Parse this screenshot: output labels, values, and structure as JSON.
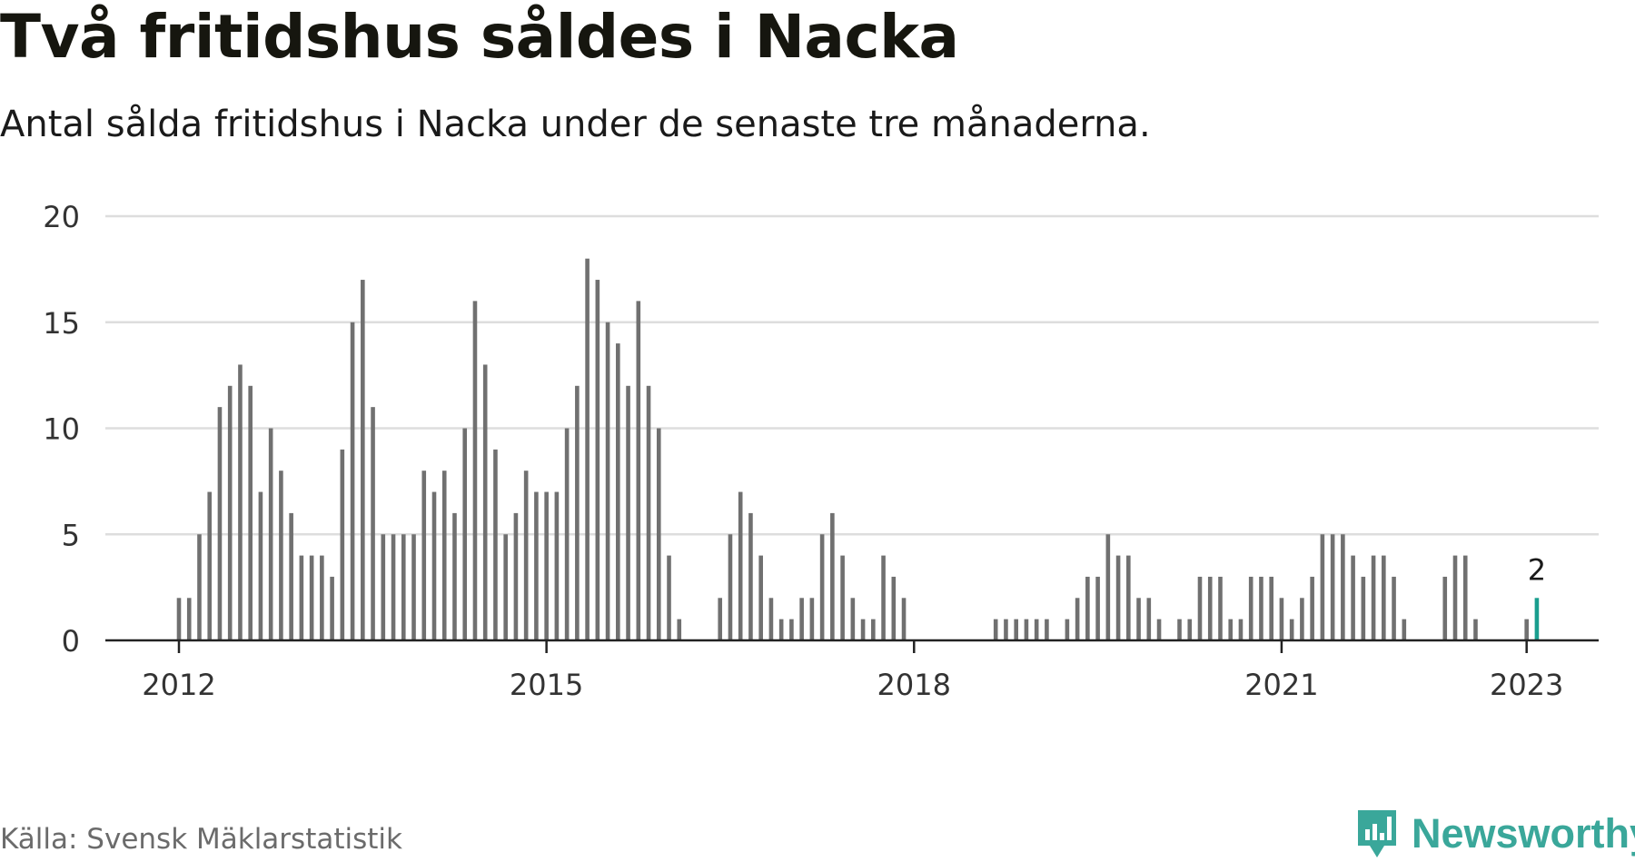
{
  "title": "Två fritidshus såldes i Nacka",
  "subtitle": "Antal sålda fritidshus i Nacka under de senaste tre månaderna.",
  "source": "Källa: Svensk Mäklarstatistik",
  "brand": {
    "name": "Newsworthy",
    "icon": "newsworthy-logo-icon",
    "color": "#3aa79a"
  },
  "colors": {
    "bar": "#707070",
    "highlight": "#1a9e8e",
    "grid": "#dddddd",
    "axis": "#222222"
  },
  "chart_data": {
    "type": "bar",
    "grid": true,
    "ylim": [
      0,
      20
    ],
    "yticks": [
      0,
      5,
      10,
      15,
      20
    ],
    "xticks": [
      "2012",
      "2015",
      "2018",
      "2021",
      "2023"
    ],
    "start": "2012-01",
    "end": "2023-01",
    "values": [
      2,
      2,
      5,
      7,
      11,
      12,
      13,
      12,
      7,
      10,
      8,
      6,
      4,
      4,
      4,
      3,
      9,
      15,
      17,
      11,
      5,
      5,
      5,
      5,
      8,
      7,
      8,
      6,
      10,
      16,
      13,
      9,
      5,
      6,
      8,
      7,
      7,
      7,
      10,
      12,
      18,
      17,
      15,
      14,
      12,
      16,
      12,
      10,
      4,
      1,
      0,
      0,
      0,
      2,
      5,
      7,
      6,
      4,
      2,
      1,
      1,
      2,
      2,
      5,
      6,
      4,
      2,
      1,
      1,
      4,
      3,
      2,
      0,
      0,
      0,
      0,
      0,
      0,
      0,
      0,
      1,
      1,
      1,
      1,
      1,
      1,
      0,
      1,
      2,
      3,
      3,
      5,
      4,
      4,
      2,
      2,
      1,
      0,
      1,
      1,
      3,
      3,
      3,
      1,
      1,
      3,
      3,
      3,
      2,
      1,
      2,
      3,
      5,
      5,
      5,
      4,
      3,
      4,
      4,
      3,
      1,
      0,
      0,
      0,
      3,
      4,
      4,
      1,
      0,
      0,
      0,
      0,
      1,
      2
    ],
    "highlight_label": "2"
  }
}
